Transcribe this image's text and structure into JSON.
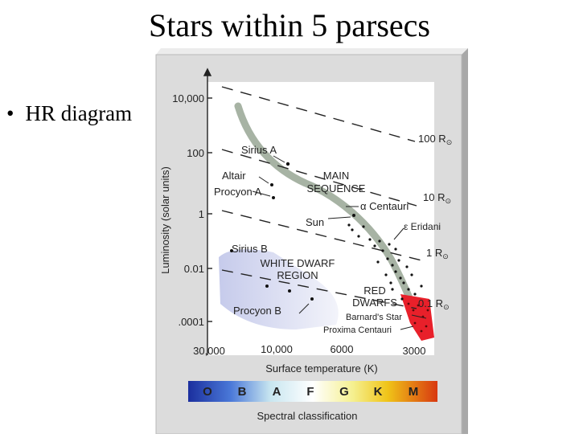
{
  "slide": {
    "title": "Stars within 5 parsecs",
    "bullet": "HR diagram"
  },
  "diagram": {
    "y_axis_label": "Luminosity (solar units)",
    "y_ticks": [
      "10,000",
      "100",
      "1",
      "0.01",
      ".0001"
    ],
    "x_axis_label": "Surface temperature (K)",
    "x_ticks": [
      "30,000",
      "10,000",
      "6000",
      "3000"
    ],
    "radius_lines": [
      {
        "label": "100 R",
        "subscript": "⊙"
      },
      {
        "label": "10 R",
        "subscript": "⊙"
      },
      {
        "label": "1 R",
        "subscript": "⊙"
      },
      {
        "label": "0.1 R",
        "subscript": "⊙"
      }
    ],
    "regions": {
      "main_sequence": [
        "MAIN",
        "SEQUENCE"
      ],
      "white_dwarf": [
        "WHITE DWARF",
        "REGION"
      ],
      "red_dwarfs": [
        "RED",
        "DWARFS"
      ]
    },
    "stars": [
      "Sirius A",
      "Altair",
      "Procyon A",
      "α Centauri",
      "Sun",
      "ε Eridani",
      "Sirius B",
      "Procyon B",
      "Barnard's Star",
      "Proxima Centauri"
    ],
    "spectral_classes": [
      "O",
      "B",
      "A",
      "F",
      "G",
      "K",
      "M"
    ],
    "spectral_label": "Spectral classification",
    "colors": {
      "main_sequence": "#8a9a86",
      "red_dwarfs": "#e8202a",
      "white_dwarf": "#c9cde8",
      "panel": "#dcdcdc",
      "spectral_gradient": [
        "#1b2f9e",
        "#4a78d8",
        "#c8e6f0",
        "#ffffff",
        "#f5f090",
        "#f0c418",
        "#d83810"
      ]
    }
  }
}
